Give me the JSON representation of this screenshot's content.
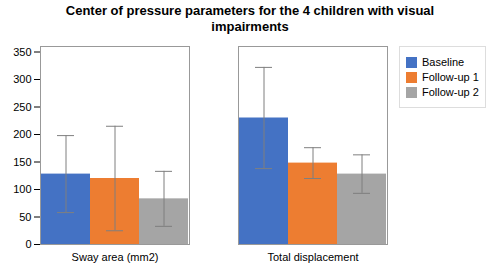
{
  "chart_data": {
    "type": "bar",
    "title": "Center of pressure parameters for the 4 children with visual\nimpairments",
    "categories": [
      "Sway area (mm2)",
      "Total displacement"
    ],
    "series": [
      {
        "name": "Baseline",
        "color": "#4472C4",
        "values": [
          128,
          230
        ],
        "errors": [
          70,
          92
        ]
      },
      {
        "name": "Follow-up 1",
        "color": "#ED7D31",
        "values": [
          120,
          148
        ],
        "errors": [
          95,
          28
        ]
      },
      {
        "name": "Follow-up 2",
        "color": "#A5A5A5",
        "values": [
          83,
          128
        ],
        "errors": [
          50,
          35
        ]
      }
    ],
    "ylim": [
      0,
      360
    ],
    "yticks": [
      0,
      50,
      100,
      150,
      200,
      250,
      300,
      350
    ],
    "grid": false,
    "legend": "right"
  }
}
